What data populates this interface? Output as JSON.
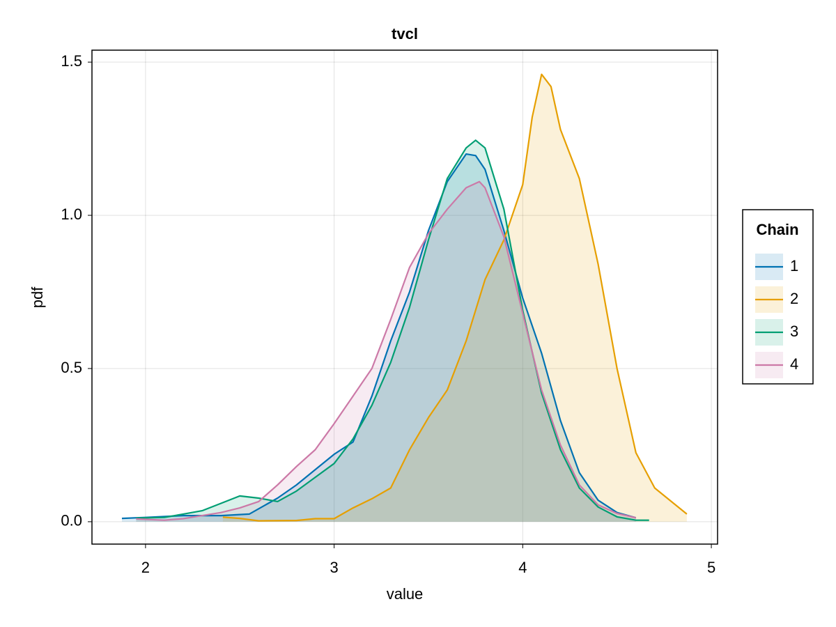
{
  "chart_data": {
    "type": "density",
    "title": "tvcl",
    "x_label": "value",
    "y_label": "pdf",
    "xlim": [
      1.716,
      5.033
    ],
    "ylim": [
      -0.073,
      1.539
    ],
    "xticks": [
      2,
      3,
      4,
      5
    ],
    "yticks": [
      {
        "value": 0,
        "label": "0.0"
      },
      0.5,
      {
        "value": 1,
        "label": "1.0"
      },
      1.5
    ],
    "grid": true,
    "legend_title": "Chain",
    "legend_position": "right",
    "series": [
      {
        "name": "1",
        "color": "#0072b2",
        "x": [
          1.875,
          2.0,
          2.2,
          2.4,
          2.55,
          2.7,
          2.8,
          2.9,
          3.0,
          3.1,
          3.2,
          3.3,
          3.4,
          3.5,
          3.6,
          3.7,
          3.75,
          3.8,
          3.9,
          4.0,
          4.1,
          4.2,
          4.3,
          4.4,
          4.5,
          4.6
        ],
        "values": [
          0.011,
          0.014,
          0.02,
          0.02,
          0.025,
          0.077,
          0.12,
          0.17,
          0.22,
          0.26,
          0.41,
          0.59,
          0.75,
          0.95,
          1.11,
          1.2,
          1.195,
          1.15,
          0.95,
          0.73,
          0.55,
          0.33,
          0.16,
          0.07,
          0.03,
          0.013
        ]
      },
      {
        "name": "2",
        "color": "#e69f00",
        "x": [
          2.41,
          2.5,
          2.6,
          2.8,
          2.9,
          3.0,
          3.1,
          3.2,
          3.3,
          3.4,
          3.5,
          3.6,
          3.7,
          3.8,
          3.9,
          4.0,
          4.05,
          4.1,
          4.15,
          4.2,
          4.3,
          4.4,
          4.5,
          4.6,
          4.7,
          4.8,
          4.87
        ],
        "values": [
          0.015,
          0.011,
          0.003,
          0.004,
          0.01,
          0.01,
          0.045,
          0.075,
          0.11,
          0.235,
          0.34,
          0.43,
          0.59,
          0.79,
          0.92,
          1.1,
          1.32,
          1.46,
          1.42,
          1.28,
          1.12,
          0.84,
          0.5,
          0.225,
          0.11,
          0.06,
          0.025
        ]
      },
      {
        "name": "3",
        "color": "#009e73",
        "x": [
          1.95,
          2.1,
          2.2,
          2.3,
          2.4,
          2.5,
          2.6,
          2.7,
          2.8,
          2.9,
          3.0,
          3.1,
          3.2,
          3.3,
          3.4,
          3.5,
          3.6,
          3.7,
          3.75,
          3.8,
          3.9,
          4.0,
          4.1,
          4.2,
          4.3,
          4.4,
          4.5,
          4.6,
          4.67
        ],
        "values": [
          0.012,
          0.014,
          0.025,
          0.036,
          0.06,
          0.084,
          0.077,
          0.066,
          0.1,
          0.145,
          0.19,
          0.27,
          0.38,
          0.52,
          0.7,
          0.92,
          1.12,
          1.22,
          1.245,
          1.22,
          1.02,
          0.69,
          0.42,
          0.235,
          0.11,
          0.048,
          0.016,
          0.005,
          0.005
        ]
      },
      {
        "name": "4",
        "color": "#cc79a7",
        "x": [
          1.95,
          2.1,
          2.2,
          2.3,
          2.4,
          2.5,
          2.6,
          2.7,
          2.8,
          2.9,
          3.0,
          3.1,
          3.2,
          3.3,
          3.4,
          3.5,
          3.6,
          3.7,
          3.77,
          3.8,
          3.9,
          4.0,
          4.1,
          4.2,
          4.3,
          4.4,
          4.5,
          4.6
        ],
        "values": [
          0.009,
          0.005,
          0.01,
          0.02,
          0.03,
          0.045,
          0.066,
          0.12,
          0.18,
          0.235,
          0.32,
          0.41,
          0.5,
          0.66,
          0.83,
          0.94,
          1.02,
          1.09,
          1.11,
          1.09,
          0.93,
          0.68,
          0.43,
          0.25,
          0.12,
          0.055,
          0.027,
          0.013
        ]
      }
    ]
  }
}
